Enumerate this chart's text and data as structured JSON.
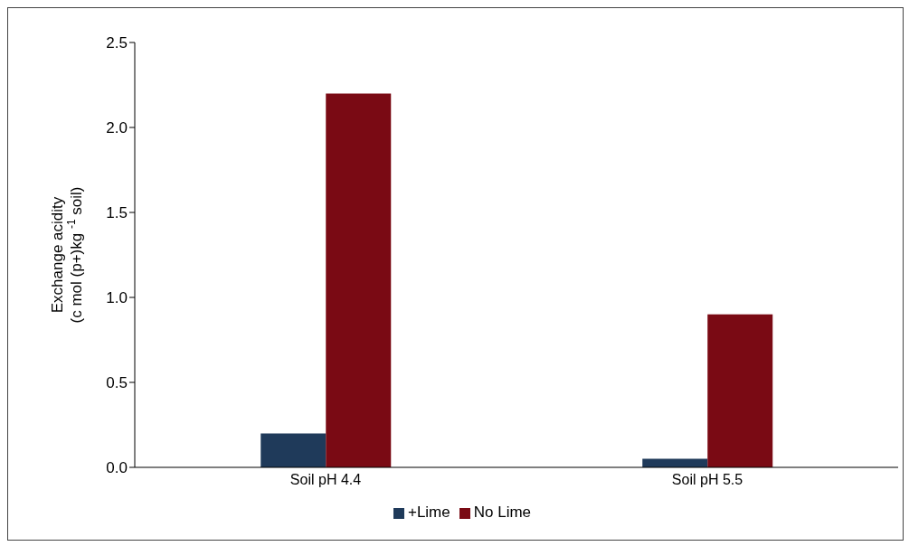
{
  "chart_data": {
    "type": "bar",
    "categories": [
      "Soil pH 4.4",
      "Soil pH 5.5"
    ],
    "series": [
      {
        "name": "+Lime",
        "color": "#1f3a5a",
        "values": [
          0.2,
          0.05
        ]
      },
      {
        "name": "No Lime",
        "color": "#7a0a14",
        "values": [
          2.2,
          0.9
        ]
      }
    ],
    "ylabel": "Exchange acidity\n(c mol (p+)kg $^{-1}$ soil)",
    "ylim": [
      0,
      2.5
    ],
    "yticks": [
      {
        "value": 0,
        "label": "0.0"
      },
      0.5,
      {
        "value": 1,
        "label": "1.0"
      },
      1.5,
      {
        "value": 2,
        "label": "2.0"
      },
      2.5
    ],
    "grid": false,
    "legend": "bottom"
  }
}
